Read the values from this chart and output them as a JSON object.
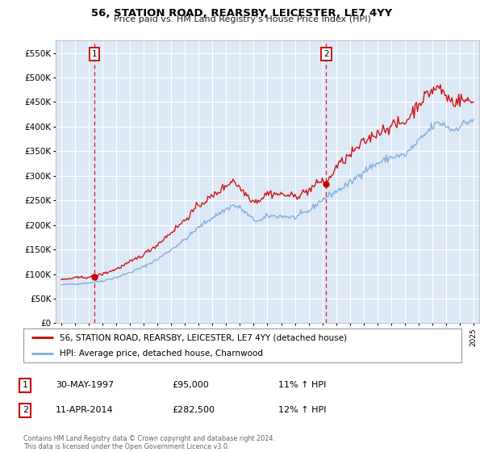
{
  "title": "56, STATION ROAD, REARSBY, LEICESTER, LE7 4YY",
  "subtitle": "Price paid vs. HM Land Registry's House Price Index (HPI)",
  "ylim": [
    0,
    575000
  ],
  "yticks": [
    0,
    50000,
    100000,
    150000,
    200000,
    250000,
    300000,
    350000,
    400000,
    450000,
    500000,
    550000
  ],
  "ytick_labels": [
    "£0",
    "£50K",
    "£100K",
    "£150K",
    "£200K",
    "£250K",
    "£300K",
    "£350K",
    "£400K",
    "£450K",
    "£500K",
    "£550K"
  ],
  "xlim_start": 1994.6,
  "xlim_end": 2025.4,
  "figure_bg": "#ffffff",
  "plot_bg_color": "#dce8f5",
  "grid_color": "#ffffff",
  "red_line_color": "#cc0000",
  "blue_line_color": "#7aaadd",
  "sale1_year": 1997.41,
  "sale1_price": 95000,
  "sale1_label": "1",
  "sale2_year": 2014.28,
  "sale2_price": 282500,
  "sale2_label": "2",
  "legend_line1": "56, STATION ROAD, REARSBY, LEICESTER, LE7 4YY (detached house)",
  "legend_line2": "HPI: Average price, detached house, Charnwood",
  "annotation1_date": "30-MAY-1997",
  "annotation1_price": "£95,000",
  "annotation1_hpi": "11% ↑ HPI",
  "annotation2_date": "11-APR-2014",
  "annotation2_price": "£282,500",
  "annotation2_hpi": "12% ↑ HPI",
  "footer": "Contains HM Land Registry data © Crown copyright and database right 2024.\nThis data is licensed under the Open Government Licence v3.0."
}
